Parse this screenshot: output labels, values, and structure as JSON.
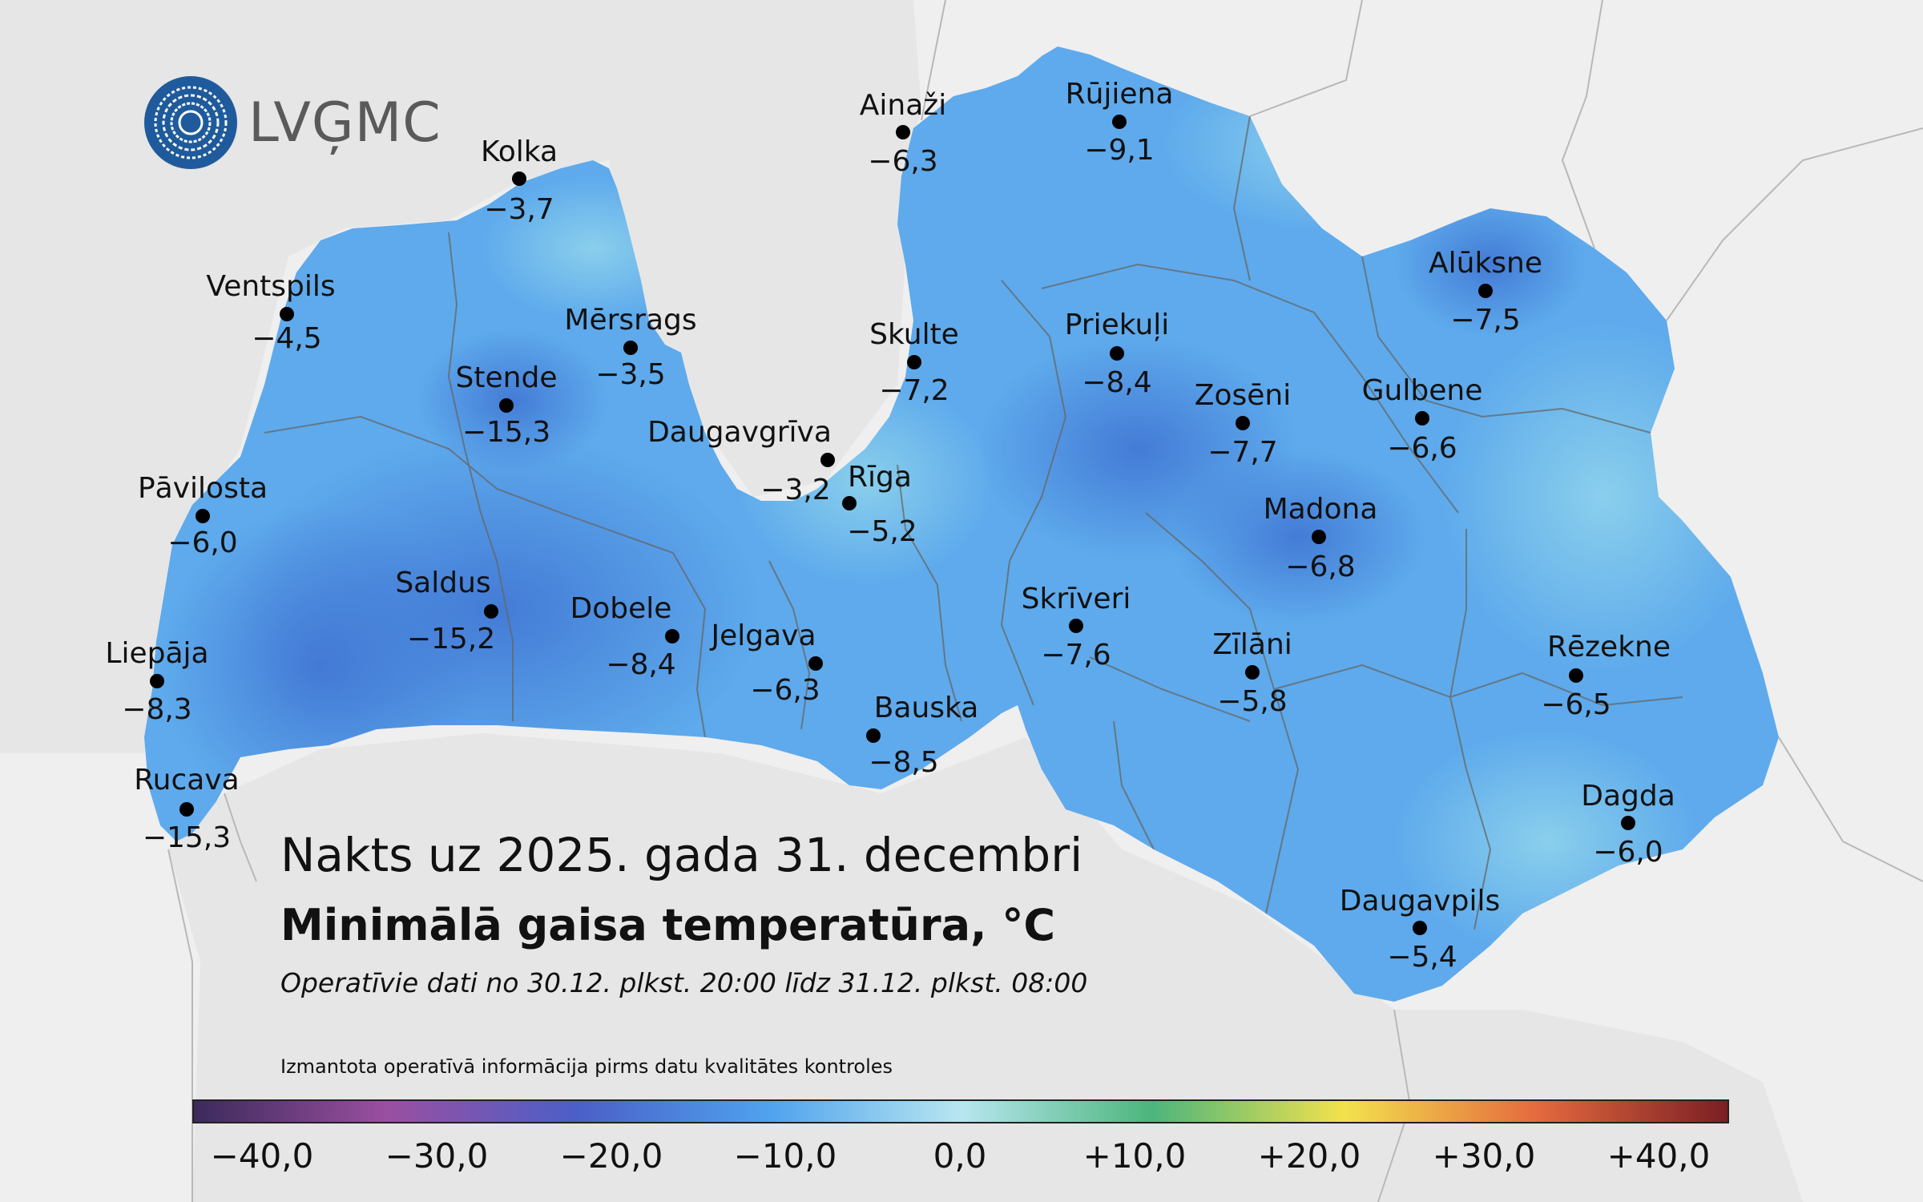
{
  "logo": {
    "text": "LVĢMC",
    "icon": "lvgmc-logo-icon"
  },
  "title": {
    "date_line": "Nakts uz 2025. gada 31. decembri",
    "main": "Minimālā gaisa temperatūra, °C",
    "subtitle": "Operatīvie dati no 30.12. plkst. 20:00 līdz 31.12. plkst. 08:00",
    "note": "Izmantota operatīvā informācija pirms datu kvalitātes kontroles"
  },
  "stations": [
    {
      "name": "Kolka",
      "value": "−3,7"
    },
    {
      "name": "Ventspils",
      "value": "−4,5"
    },
    {
      "name": "Mērsrags",
      "value": "−3,5"
    },
    {
      "name": "Stende",
      "value": "−15,3"
    },
    {
      "name": "Pāvilosta",
      "value": "−6,0"
    },
    {
      "name": "Saldus",
      "value": "−15,2"
    },
    {
      "name": "Liepāja",
      "value": "−8,3"
    },
    {
      "name": "Rucava",
      "value": "−15,3"
    },
    {
      "name": "Dobele",
      "value": "−8,4"
    },
    {
      "name": "Jelgava",
      "value": "−6,3"
    },
    {
      "name": "Bauska",
      "value": "−8,5"
    },
    {
      "name": "Daugavgrīva",
      "value": "−3,2"
    },
    {
      "name": "Rīga",
      "value": "−5,2"
    },
    {
      "name": "Ainaži",
      "value": "−6,3"
    },
    {
      "name": "Skulte",
      "value": "−7,2"
    },
    {
      "name": "Rūjiena",
      "value": "−9,1"
    },
    {
      "name": "Priekuļi",
      "value": "−8,4"
    },
    {
      "name": "Zosēni",
      "value": "−7,7"
    },
    {
      "name": "Alūksne",
      "value": "−7,5"
    },
    {
      "name": "Gulbene",
      "value": "−6,6"
    },
    {
      "name": "Madona",
      "value": "−6,8"
    },
    {
      "name": "Skrīveri",
      "value": "−7,6"
    },
    {
      "name": "Zīlāni",
      "value": "−5,8"
    },
    {
      "name": "Rēzekne",
      "value": "−6,5"
    },
    {
      "name": "Dagda",
      "value": "−6,0"
    },
    {
      "name": "Daugavpils",
      "value": "−5,4"
    }
  ],
  "legend": {
    "ticks": [
      "−40,0",
      "−30,0",
      "−20,0",
      "−10,0",
      "0,0",
      "+10,0",
      "+20,0",
      "+30,0",
      "+40,0"
    ],
    "colors": [
      "#3b2a5a",
      "#9a4fa0",
      "#4b5fc8",
      "#4fa2ee",
      "#b8e6f0",
      "#4cb57c",
      "#f2e24c",
      "#e56a3e",
      "#7a1f24"
    ]
  },
  "colors": {
    "land": "#5eaaec",
    "sea": "#e6e6e6",
    "neighbor": "#efefef",
    "border": "#555555",
    "dot": "#000000"
  }
}
